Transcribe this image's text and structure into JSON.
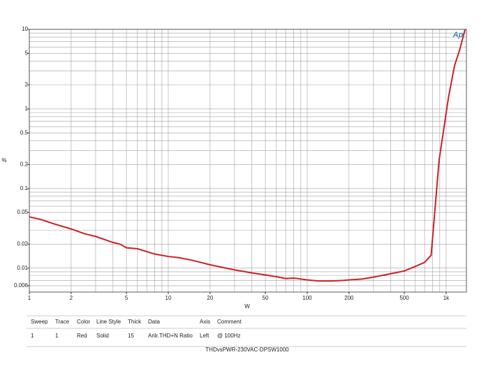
{
  "chart_data": {
    "type": "line",
    "xlabel": "W",
    "ylabel": "%",
    "logo": "Ap",
    "xscale": "log",
    "yscale": "log",
    "grid": true,
    "xlim": [
      1,
      1400
    ],
    "ylim": [
      0.005,
      10
    ],
    "xticks": [
      1,
      2,
      5,
      10,
      20,
      50,
      100,
      200,
      500,
      {
        "value": 1000,
        "label": "1k"
      }
    ],
    "yticks": [
      10,
      5,
      2,
      1,
      0.5,
      0.2,
      0.1,
      0.05,
      0.02,
      0.01,
      0.006
    ],
    "xgrid": [
      1,
      2,
      3,
      4,
      5,
      6,
      7,
      8,
      9,
      10,
      20,
      30,
      40,
      50,
      60,
      70,
      80,
      90,
      100,
      200,
      300,
      400,
      500,
      600,
      700,
      800,
      900,
      1000
    ],
    "ygrid": [
      0.006,
      0.007,
      0.008,
      0.009,
      0.01,
      0.02,
      0.03,
      0.04,
      0.05,
      0.06,
      0.07,
      0.08,
      0.09,
      0.1,
      0.2,
      0.3,
      0.4,
      0.5,
      0.6,
      0.7,
      0.8,
      0.9,
      1,
      2,
      3,
      4,
      5,
      6,
      7,
      8,
      9,
      10
    ],
    "x": [
      1,
      1.2,
      1.5,
      2,
      2.5,
      3,
      4,
      4.5,
      5,
      6,
      8,
      10,
      12,
      15,
      20,
      30,
      40,
      50,
      60,
      70,
      80,
      100,
      120,
      150,
      180,
      200,
      250,
      300,
      400,
      500,
      600,
      700,
      780,
      890,
      1040,
      1150,
      1250,
      1370
    ],
    "series": [
      {
        "name": "Anlr.THD+N Ratio",
        "color": "#cc2026",
        "values": [
          0.044,
          0.041,
          0.036,
          0.031,
          0.027,
          0.025,
          0.021,
          0.02,
          0.018,
          0.0175,
          0.015,
          0.014,
          0.0135,
          0.0125,
          0.011,
          0.0095,
          0.0087,
          0.0082,
          0.0078,
          0.0074,
          0.0075,
          0.0071,
          0.0069,
          0.0069,
          0.007,
          0.0071,
          0.0073,
          0.0077,
          0.0085,
          0.0092,
          0.0105,
          0.0118,
          0.0145,
          0.226,
          1.4,
          3.5,
          5.5,
          10
        ]
      }
    ],
    "table": {
      "header": [
        "Sweep",
        "Trace",
        "Color",
        "Line Style",
        "Thick",
        "Data",
        "Axis",
        "Comment"
      ],
      "row": [
        "1",
        "1",
        "Red",
        "Solid",
        "15",
        "Anlr.THD+N Ratio",
        "Left",
        "@ 100Hz"
      ]
    },
    "footer": "THDvsPWR-230VAC-DPSW1000"
  }
}
